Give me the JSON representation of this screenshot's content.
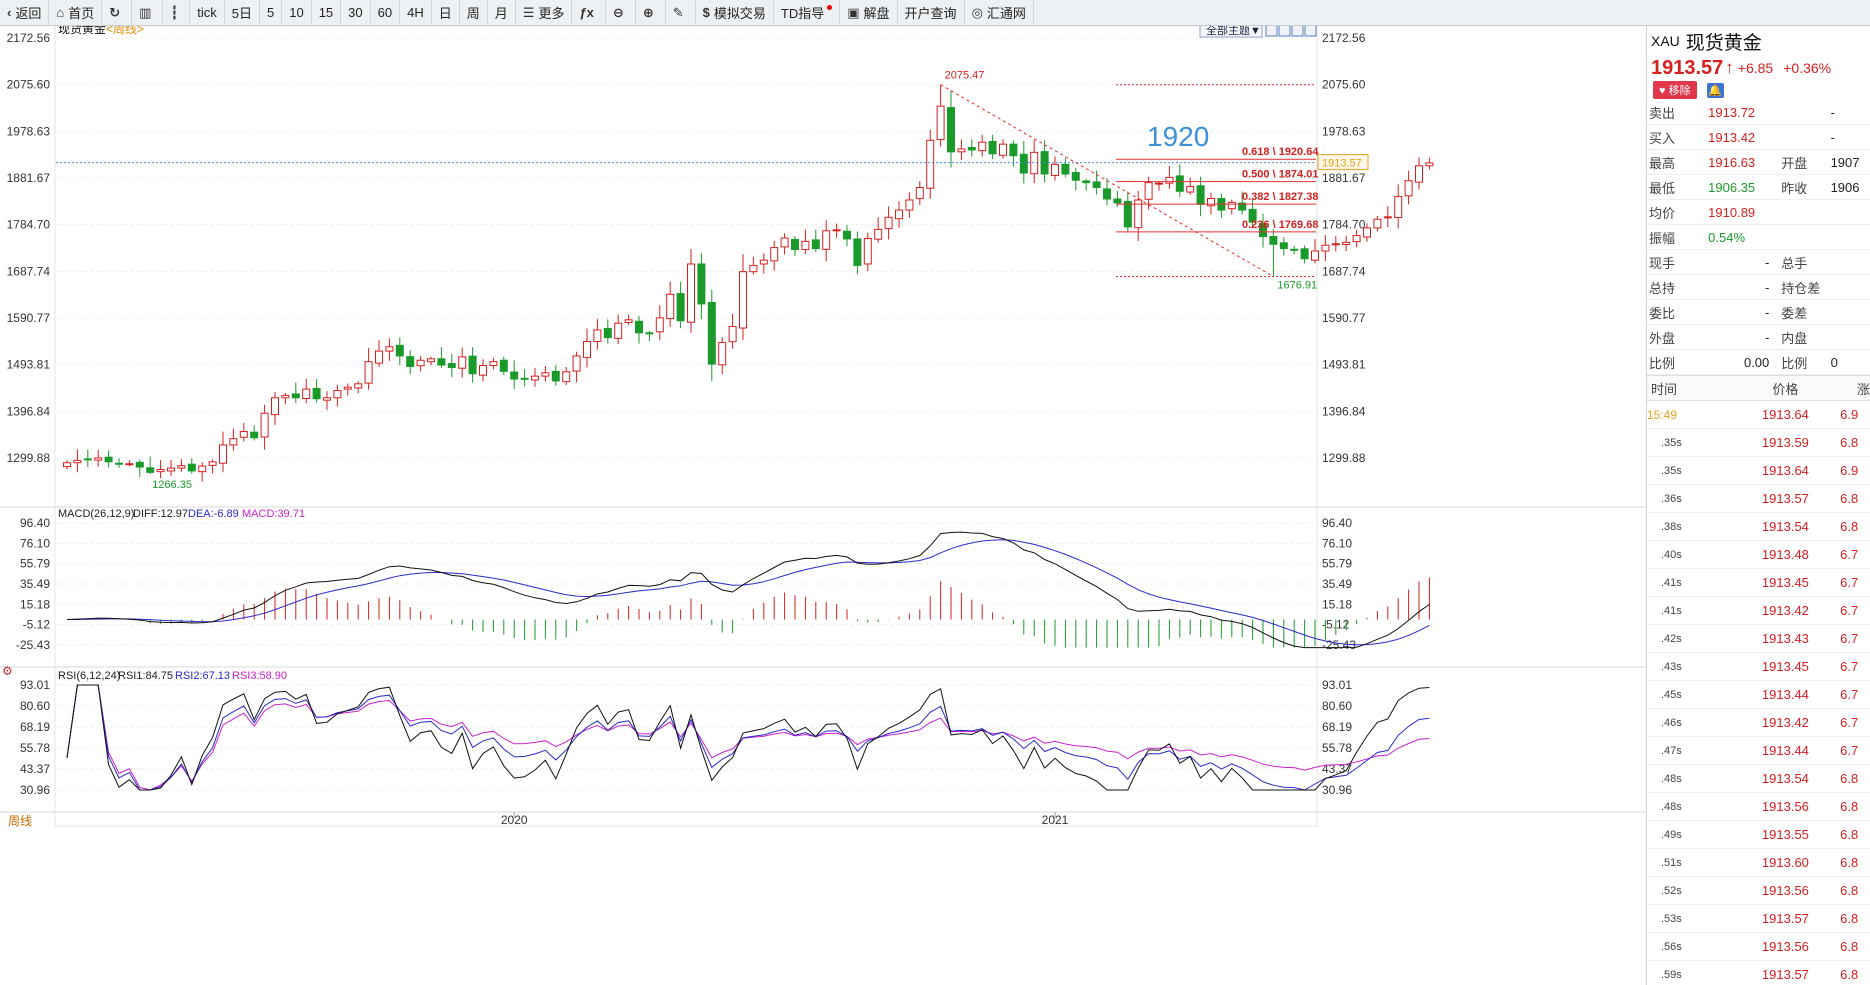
{
  "toolbar": {
    "items": [
      {
        "icon": "back-icon",
        "label": "返回"
      },
      {
        "icon": "home-icon",
        "label": "首页"
      },
      {
        "icon": "refresh-icon",
        "label": ""
      },
      {
        "icon": "bars-icon",
        "label": ""
      },
      {
        "icon": "candles-icon",
        "label": ""
      },
      {
        "icon": "",
        "label": "tick"
      },
      {
        "icon": "",
        "label": "5日"
      },
      {
        "icon": "",
        "label": "5"
      },
      {
        "icon": "",
        "label": "10"
      },
      {
        "icon": "",
        "label": "15"
      },
      {
        "icon": "",
        "label": "30"
      },
      {
        "icon": "",
        "label": "60"
      },
      {
        "icon": "",
        "label": "4H"
      },
      {
        "icon": "",
        "label": "日"
      },
      {
        "icon": "",
        "label": "周"
      },
      {
        "icon": "",
        "label": "月"
      },
      {
        "icon": "list-icon",
        "label": "更多"
      },
      {
        "icon": "function-icon",
        "label": ""
      },
      {
        "icon": "zoom-out-icon",
        "label": ""
      },
      {
        "icon": "zoom-in-icon",
        "label": ""
      },
      {
        "icon": "pen-icon",
        "label": ""
      },
      {
        "icon": "dollar-icon",
        "label": "模拟交易"
      },
      {
        "icon": "",
        "label": "TD指导"
      },
      {
        "icon": "chat-icon",
        "label": "解盘"
      },
      {
        "icon": "",
        "label": "开户查询"
      },
      {
        "icon": "globe-icon",
        "label": "汇通网"
      }
    ]
  },
  "chart_header": {
    "symbol": "现货黄金",
    "period": "<周线>",
    "theme_button": "全部主题▼"
  },
  "price_axis": {
    "ticks": [
      "2172.56",
      "2075.60",
      "1978.63",
      "1881.67",
      "1784.70",
      "1687.74",
      "1590.77",
      "1493.81",
      "1396.84",
      "1299.88"
    ]
  },
  "macd_axis": {
    "ticks": [
      "96.40",
      "76.10",
      "55.79",
      "35.49",
      "15.18",
      "-5.12",
      "-25.43"
    ]
  },
  "rsi_axis": {
    "ticks": [
      "93.01",
      "80.60",
      "68.19",
      "55.78",
      "43.37",
      "30.96"
    ]
  },
  "time_axis": {
    "labels": [
      "2020",
      "2021"
    ]
  },
  "period_tab": "周线",
  "current_price_label": "1913.57",
  "annotations": {
    "high_label": "2075.47",
    "low_label_1": "1266.35",
    "low_label_2": "1676.91",
    "big_text": "1920",
    "fib": [
      {
        "ratio": "0.618",
        "price": "1920.64"
      },
      {
        "ratio": "0.500",
        "price": "1874.01"
      },
      {
        "ratio": "0.382",
        "price": "1827.38"
      },
      {
        "ratio": "0.236",
        "price": "1769.68"
      }
    ]
  },
  "macd_header": {
    "title": "MACD(26,12,9)",
    "diff": "DIFF:12.97",
    "dea": "DEA:-6.89",
    "macd": "MACD:39.71"
  },
  "rsi_header": {
    "title": "RSI(6,12,24)",
    "rsi1": "RSI1:84.75",
    "rsi2": "RSI2:67.13",
    "rsi3": "RSI3:58.90"
  },
  "colors": {
    "up": "#d62020",
    "down": "#1a9a2a",
    "grid": "#e9e9e9",
    "accent": "#3d8fd6"
  },
  "quote": {
    "code": "XAU",
    "name": "现货黄金",
    "price": "1913.57",
    "arrow": "↑",
    "change": "+6.85",
    "change_pct": "+0.36%",
    "remove_label": "移除",
    "rows": [
      {
        "k": "卖出",
        "v": "1913.72",
        "k2": "",
        "v2": "-",
        "vc": "red"
      },
      {
        "k": "买入",
        "v": "1913.42",
        "k2": "",
        "v2": "-",
        "vc": "red"
      },
      {
        "k": "最高",
        "v": "1916.63",
        "k2": "开盘",
        "v2": "1907",
        "vc": "red"
      },
      {
        "k": "最低",
        "v": "1906.35",
        "k2": "昨收",
        "v2": "1906",
        "vc": "green"
      },
      {
        "k": "均价",
        "v": "1910.89",
        "k2": "",
        "v2": "",
        "vc": "red"
      },
      {
        "k": "振幅",
        "v": "0.54%",
        "k2": "",
        "v2": "",
        "vc": "green"
      },
      {
        "k": "现手",
        "v": "-",
        "k2": "总手",
        "v2": "",
        "vc": "dark"
      },
      {
        "k": "总持",
        "v": "-",
        "k2": "持仓差",
        "v2": "",
        "vc": "dark"
      },
      {
        "k": "委比",
        "v": "-",
        "k2": "委差",
        "v2": "",
        "vc": "dark"
      },
      {
        "k": "外盘",
        "v": "-",
        "k2": "内盘",
        "v2": "",
        "vc": "dark"
      },
      {
        "k": "比例",
        "v": "0.00",
        "k2": "比例",
        "v2": "0",
        "vc": "dark"
      }
    ],
    "tick_header": [
      "时间",
      "价格",
      "涨"
    ],
    "ticks": [
      {
        "t": "15:49",
        "p": "1913.64",
        "c": "6.9"
      },
      {
        "t": ".35s",
        "p": "1913.59",
        "c": "6.8"
      },
      {
        "t": ".35s",
        "p": "1913.64",
        "c": "6.9"
      },
      {
        "t": ".36s",
        "p": "1913.57",
        "c": "6.8"
      },
      {
        "t": ".38s",
        "p": "1913.54",
        "c": "6.8"
      },
      {
        "t": ".40s",
        "p": "1913.48",
        "c": "6.7"
      },
      {
        "t": ".41s",
        "p": "1913.45",
        "c": "6.7"
      },
      {
        "t": ".41s",
        "p": "1913.42",
        "c": "6.7"
      },
      {
        "t": ".42s",
        "p": "1913.43",
        "c": "6.7"
      },
      {
        "t": ".43s",
        "p": "1913.45",
        "c": "6.7"
      },
      {
        "t": ".45s",
        "p": "1913.44",
        "c": "6.7"
      },
      {
        "t": ".46s",
        "p": "1913.42",
        "c": "6.7"
      },
      {
        "t": ".47s",
        "p": "1913.44",
        "c": "6.7"
      },
      {
        "t": ".48s",
        "p": "1913.54",
        "c": "6.8"
      },
      {
        "t": ".48s",
        "p": "1913.56",
        "c": "6.8"
      },
      {
        "t": ".49s",
        "p": "1913.55",
        "c": "6.8"
      },
      {
        "t": ".51s",
        "p": "1913.60",
        "c": "6.8"
      },
      {
        "t": ".52s",
        "p": "1913.56",
        "c": "6.8"
      },
      {
        "t": ".53s",
        "p": "1913.57",
        "c": "6.8"
      },
      {
        "t": ".56s",
        "p": "1913.56",
        "c": "6.8"
      },
      {
        "t": ".59s",
        "p": "1913.57",
        "c": "6.8"
      }
    ]
  },
  "chart_data": {
    "type": "candlestick",
    "period": "weekly",
    "ylim": [
      1266.35,
      2172.56
    ],
    "highlight_levels": {
      "high": 2075.47,
      "low": 1676.91,
      "current": 1913.57
    },
    "fib_levels": [
      1920.64,
      1874.01,
      1827.38,
      1769.68
    ],
    "closes": [
      1290,
      1295,
      1297,
      1300,
      1292,
      1287,
      1288,
      1281,
      1270,
      1276,
      1279,
      1284,
      1273,
      1283,
      1292,
      1327,
      1340,
      1355,
      1342,
      1393,
      1425,
      1430,
      1425,
      1443,
      1423,
      1425,
      1440,
      1447,
      1454,
      1500,
      1522,
      1531,
      1512,
      1490,
      1503,
      1506,
      1493,
      1488,
      1510,
      1475,
      1492,
      1500,
      1480,
      1464,
      1465,
      1470,
      1477,
      1460,
      1479,
      1512,
      1542,
      1566,
      1550,
      1580,
      1587,
      1560,
      1559,
      1591,
      1640,
      1585,
      1703,
      1620,
      1495,
      1540,
      1573,
      1687,
      1700,
      1711,
      1737,
      1757,
      1733,
      1750,
      1735,
      1772,
      1774,
      1755,
      1700,
      1756,
      1775,
      1800,
      1815,
      1836,
      1862,
      1960,
      2031,
      1936,
      1942,
      1940,
      1956,
      1932,
      1952,
      1928,
      1892,
      1935,
      1890,
      1910,
      1890,
      1877,
      1872,
      1862,
      1838,
      1830,
      1780,
      1836,
      1872,
      1871,
      1883,
      1854,
      1864,
      1827,
      1839,
      1815,
      1831,
      1815,
      1790,
      1760,
      1744,
      1735,
      1733,
      1714,
      1730,
      1742,
      1745,
      1748,
      1762,
      1778,
      1796,
      1801,
      1843,
      1876,
      1907,
      1913
    ]
  }
}
